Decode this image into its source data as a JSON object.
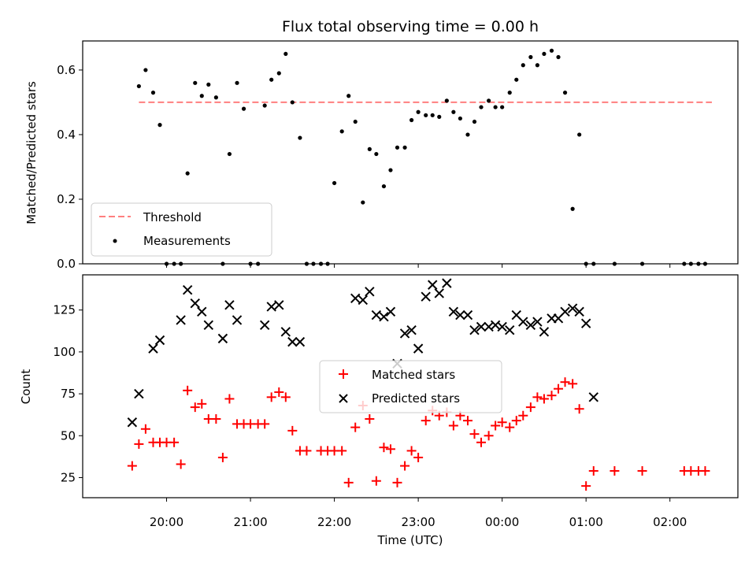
{
  "chart_data": [
    {
      "type": "scatter",
      "title": "Flux total observing time = 0.00 h",
      "xlabel": "",
      "ylabel": "Matched/Predicted stars",
      "ylim": [
        0,
        0.69
      ],
      "yticks": [
        "0.0",
        "0.2",
        "0.4",
        "0.6"
      ],
      "xlim_hours": [
        19.0,
        26.81
      ],
      "grid": false,
      "legend_position": "lower-left",
      "series": [
        {
          "name": "Threshold",
          "kind": "dashed-line",
          "color": "#ff7f7f",
          "x": [
            19.67,
            26.5
          ],
          "y": [
            0.5,
            0.5
          ]
        },
        {
          "name": "Measurements",
          "kind": "dot",
          "color": "#000000",
          "x": [
            19.67,
            19.75,
            19.84,
            19.92,
            20.0,
            20.09,
            20.17,
            20.25,
            20.34,
            20.42,
            20.5,
            20.59,
            20.67,
            20.75,
            20.84,
            20.92,
            21.0,
            21.09,
            21.17,
            21.25,
            21.34,
            21.42,
            21.5,
            21.59,
            21.67,
            21.75,
            21.84,
            21.92,
            22.0,
            22.09,
            22.17,
            22.25,
            22.34,
            22.42,
            22.5,
            22.59,
            22.67,
            22.75,
            22.84,
            22.92,
            23.0,
            23.09,
            23.17,
            23.25,
            23.34,
            23.42,
            23.5,
            23.59,
            23.67,
            23.75,
            23.84,
            23.92,
            24.0,
            24.09,
            24.17,
            24.25,
            24.34,
            24.42,
            24.5,
            24.59,
            24.67,
            24.75,
            24.84,
            24.92,
            25.0,
            25.09,
            25.34,
            25.67,
            26.17,
            26.25,
            26.34,
            26.42
          ],
          "y": [
            0.55,
            0.6,
            0.53,
            0.43,
            0.0,
            0.0,
            0.0,
            0.28,
            0.56,
            0.52,
            0.555,
            0.515,
            0.0,
            0.34,
            0.56,
            0.48,
            0.0,
            0.0,
            0.49,
            0.57,
            0.59,
            0.65,
            0.5,
            0.39,
            0.0,
            0.0,
            0.0,
            0.0,
            0.25,
            0.41,
            0.52,
            0.44,
            0.19,
            0.355,
            0.34,
            0.24,
            0.29,
            0.36,
            0.36,
            0.445,
            0.47,
            0.46,
            0.46,
            0.455,
            0.505,
            0.47,
            0.45,
            0.4,
            0.44,
            0.485,
            0.505,
            0.485,
            0.485,
            0.53,
            0.57,
            0.615,
            0.64,
            0.615,
            0.65,
            0.66,
            0.64,
            0.53,
            0.17,
            0.4,
            0.0,
            0.0,
            0.0,
            0.0,
            0.0,
            0.0,
            0.0,
            0.0
          ]
        }
      ]
    },
    {
      "type": "scatter",
      "title": "",
      "xlabel": "Time (UTC)",
      "ylabel": "Count",
      "ylim": [
        13,
        146
      ],
      "yticks": [
        "25",
        "50",
        "75",
        "100",
        "125"
      ],
      "xlim_hours": [
        19.0,
        26.81
      ],
      "xticks": [
        {
          "hour": 20,
          "label": "20:00"
        },
        {
          "hour": 21,
          "label": "21:00"
        },
        {
          "hour": 22,
          "label": "22:00"
        },
        {
          "hour": 23,
          "label": "23:00"
        },
        {
          "hour": 24,
          "label": "00:00"
        },
        {
          "hour": 25,
          "label": "01:00"
        },
        {
          "hour": 26,
          "label": "02:00"
        }
      ],
      "grid": false,
      "legend_position": "center",
      "series": [
        {
          "name": "Matched stars",
          "kind": "plus",
          "color": "#ff0000",
          "x": [
            19.59,
            19.67,
            19.75,
            19.84,
            19.92,
            20.0,
            20.09,
            20.17,
            20.25,
            20.34,
            20.42,
            20.5,
            20.59,
            20.67,
            20.75,
            20.84,
            20.92,
            21.0,
            21.09,
            21.17,
            21.25,
            21.34,
            21.42,
            21.5,
            21.59,
            21.67,
            21.84,
            21.92,
            22.0,
            22.09,
            22.17,
            22.25,
            22.34,
            22.42,
            22.5,
            22.59,
            22.67,
            22.75,
            22.84,
            22.92,
            23.0,
            23.09,
            23.17,
            23.25,
            23.34,
            23.42,
            23.5,
            23.59,
            23.67,
            23.75,
            23.84,
            23.92,
            24.0,
            24.09,
            24.17,
            24.25,
            24.34,
            24.42,
            24.5,
            24.59,
            24.67,
            24.75,
            24.84,
            24.92,
            25.0,
            25.09,
            25.34,
            25.67,
            26.17,
            26.25,
            26.34,
            26.42
          ],
          "y": [
            32,
            45,
            54,
            46,
            46,
            46,
            46,
            33,
            77,
            67,
            69,
            60,
            60,
            37,
            72,
            57,
            57,
            57,
            57,
            57,
            73,
            76,
            73,
            53,
            41,
            41,
            41,
            41,
            41,
            41,
            22,
            55,
            68,
            60,
            23,
            43,
            42,
            22,
            32,
            41,
            37,
            59,
            65,
            62,
            64,
            56,
            62,
            59,
            51,
            46,
            50,
            56,
            58,
            55,
            59,
            62,
            67,
            73,
            72,
            74,
            78,
            82,
            81,
            66,
            20,
            29,
            29,
            29,
            29,
            29,
            29,
            29
          ]
        },
        {
          "name": "Predicted stars",
          "kind": "x",
          "color": "#000000",
          "x": [
            19.59,
            19.67,
            19.84,
            19.92,
            20.17,
            20.25,
            20.34,
            20.42,
            20.5,
            20.67,
            20.75,
            20.84,
            21.17,
            21.25,
            21.34,
            21.42,
            21.5,
            21.59,
            22.25,
            22.34,
            22.42,
            22.5,
            22.59,
            22.67,
            22.75,
            22.84,
            22.92,
            23.0,
            23.09,
            23.17,
            23.25,
            23.34,
            23.42,
            23.5,
            23.59,
            23.67,
            23.75,
            23.84,
            23.92,
            24.0,
            24.09,
            24.17,
            24.25,
            24.34,
            24.42,
            24.5,
            24.59,
            24.67,
            24.75,
            24.84,
            24.92,
            25.0,
            25.09
          ],
          "y": [
            58,
            75,
            102,
            107,
            119,
            137,
            129,
            124,
            116,
            108,
            128,
            119,
            116,
            127,
            128,
            112,
            106,
            106,
            132,
            131,
            136,
            122,
            121,
            124,
            93,
            111,
            113,
            102,
            133,
            140,
            135,
            141,
            124,
            122,
            122,
            113,
            115,
            115,
            116,
            115,
            113,
            122,
            118,
            116,
            118,
            112,
            120,
            120,
            124,
            126,
            124,
            117,
            73
          ]
        }
      ]
    }
  ]
}
